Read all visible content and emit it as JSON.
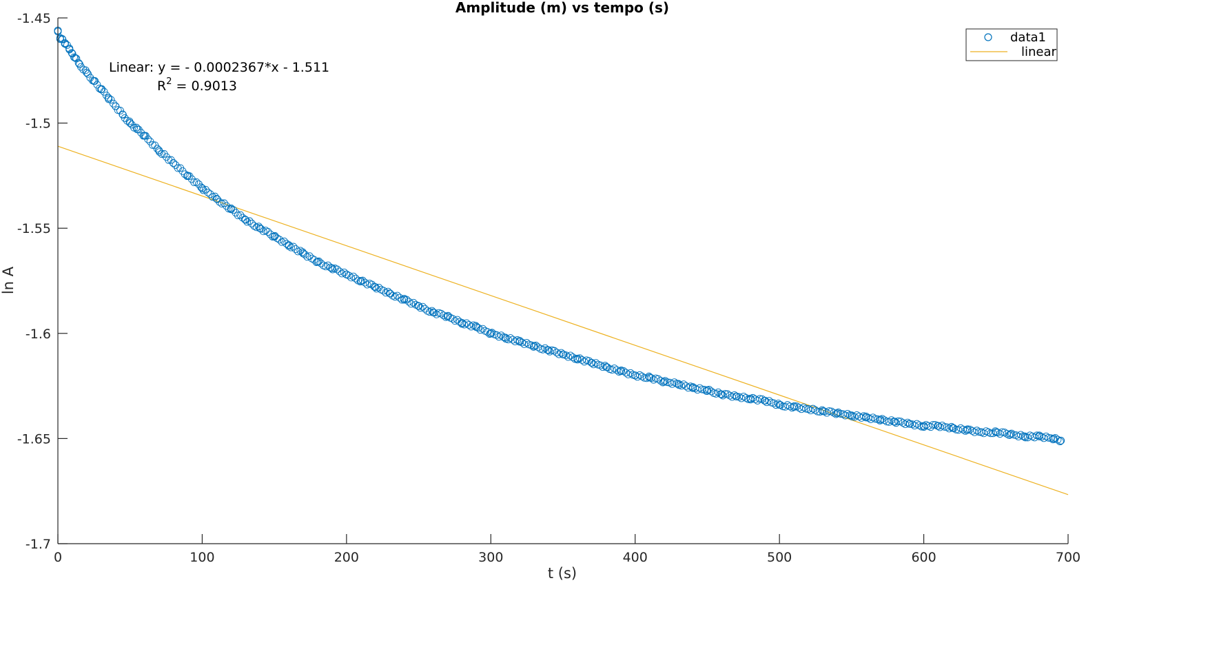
{
  "chart_data": {
    "type": "scatter",
    "title": "Amplitude (m) vs tempo (s)",
    "xlabel": "t (s)",
    "ylabel": "ln A",
    "xlim": [
      0,
      700
    ],
    "ylim": [
      -1.7,
      -1.45
    ],
    "xticks": [
      0,
      100,
      200,
      300,
      400,
      500,
      600,
      700
    ],
    "yticks": [
      -1.7,
      -1.65,
      -1.6,
      -1.55,
      -1.5,
      -1.45
    ],
    "xtick_labels": [
      "0",
      "100",
      "200",
      "300",
      "400",
      "500",
      "600",
      "700"
    ],
    "ytick_labels": [
      "-1.7",
      "-1.65",
      "-1.6",
      "-1.55",
      "-1.5",
      "-1.45"
    ],
    "grid": false,
    "legend": {
      "placement": "top-right",
      "entries": [
        "data1",
        "linear"
      ]
    },
    "series": [
      {
        "name": "data1",
        "kind": "scatter",
        "marker": "circle-open",
        "color": "#0072BD",
        "x": [
          0,
          1.6,
          3,
          5,
          8,
          10,
          12,
          15,
          20,
          25,
          30,
          35,
          40,
          45,
          50,
          55,
          60,
          70,
          80,
          90,
          100,
          110,
          120,
          130,
          140,
          150,
          160,
          170,
          180,
          190,
          200,
          210,
          220,
          230,
          240,
          250,
          260,
          270,
          280,
          290,
          300,
          310,
          320,
          330,
          340,
          350,
          360,
          370,
          380,
          390,
          400,
          410,
          420,
          430,
          440,
          450,
          460,
          470,
          480,
          490,
          500,
          510,
          520,
          530,
          540,
          550,
          560,
          570,
          580,
          590,
          600,
          610,
          620,
          630,
          640,
          650,
          660,
          670,
          680,
          690,
          695
        ],
        "y": [
          -1.456,
          -1.46,
          -1.46,
          -1.462,
          -1.465,
          -1.467,
          -1.469,
          -1.472,
          -1.476,
          -1.48,
          -1.484,
          -1.488,
          -1.492,
          -1.496,
          -1.5,
          -1.503,
          -1.506,
          -1.513,
          -1.519,
          -1.525,
          -1.531,
          -1.536,
          -1.541,
          -1.546,
          -1.55,
          -1.554,
          -1.558,
          -1.562,
          -1.566,
          -1.569,
          -1.572,
          -1.575,
          -1.578,
          -1.581,
          -1.584,
          -1.587,
          -1.59,
          -1.592,
          -1.595,
          -1.597,
          -1.6,
          -1.602,
          -1.604,
          -1.606,
          -1.608,
          -1.61,
          -1.612,
          -1.614,
          -1.616,
          -1.618,
          -1.62,
          -1.621,
          -1.623,
          -1.624,
          -1.626,
          -1.627,
          -1.629,
          -1.63,
          -1.631,
          -1.632,
          -1.634,
          -1.635,
          -1.636,
          -1.637,
          -1.638,
          -1.639,
          -1.64,
          -1.641,
          -1.642,
          -1.643,
          -1.644,
          -1.644,
          -1.645,
          -1.646,
          -1.647,
          -1.647,
          -1.648,
          -1.649,
          -1.649,
          -1.65,
          -1.651
        ]
      },
      {
        "name": "linear",
        "kind": "line",
        "color": "#EDB120",
        "x": [
          0,
          700
        ],
        "y": [
          -1.511,
          -1.67669
        ]
      }
    ],
    "annotations": {
      "equation": "Linear:  y = - 0.0002367*x - 1.511",
      "r2_label": "R",
      "r2_sup": "2",
      "r2_value": " = 0.9013"
    }
  }
}
